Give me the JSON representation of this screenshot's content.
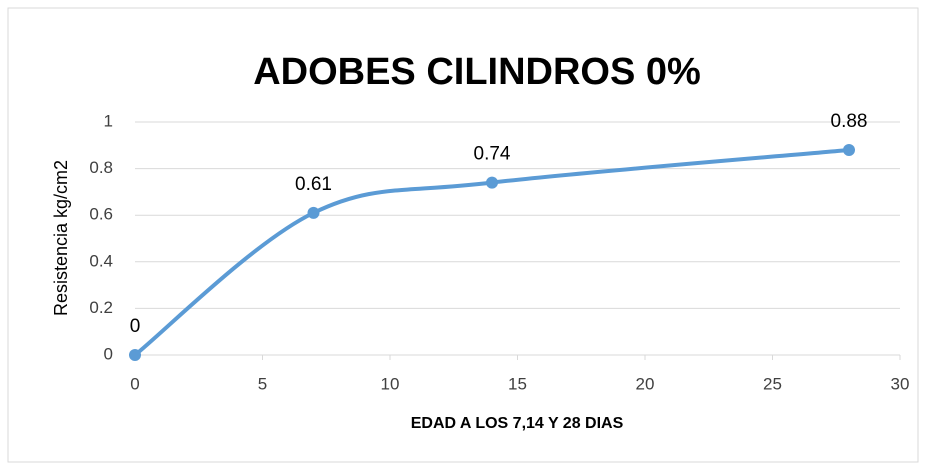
{
  "chart_data": {
    "type": "line",
    "title": "ADOBES CILINDROS 0%",
    "x_label": "EDAD A LOS 7,14 Y 28 DIAS",
    "y_label": "Resistencia kg/cm2",
    "x": [
      0,
      7,
      14,
      28
    ],
    "series": [
      {
        "color": "#5b9bd5",
        "values": [
          0,
          0.61,
          0.74,
          0.88
        ]
      }
    ],
    "xlim": [
      0,
      30
    ],
    "xticks": [
      0,
      5,
      10,
      15,
      20,
      25,
      30
    ],
    "ylim": [
      0,
      1
    ],
    "yticks": [
      0,
      0.2,
      0.4,
      0.6,
      0.8,
      1
    ],
    "grid": true,
    "smooth": true
  }
}
